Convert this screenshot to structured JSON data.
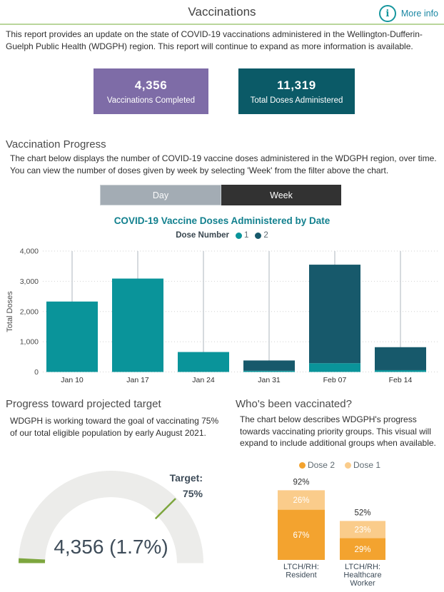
{
  "header": {
    "title": "Vaccinations",
    "more_info": "More info",
    "info_icon_glyph": "i"
  },
  "intro": "This report provides an update on the state of COVID-19 vaccinations administered in the Wellington-Dufferin-Guelph Public Health (WDGPH) region. This report will continue to expand as more information is available.",
  "kpi_cards": [
    {
      "value": "4,356",
      "label": "Vaccinations Completed",
      "color": "#7e6ca7"
    },
    {
      "value": "11,319",
      "label": "Total Doses Administered",
      "color": "#0b5a67"
    }
  ],
  "vaccination_progress": {
    "heading": "Vaccination Progress",
    "body": "The chart below displays the number of COVID-19 vaccine doses administered in the WDGPH region, over time. You can view the number of doses given by week by selecting 'Week' from the filter above the chart."
  },
  "toggle": {
    "day": "Day",
    "week": "Week",
    "selected": "Week"
  },
  "target_section": {
    "heading": "Progress toward projected target",
    "body": "WDGPH is working toward the goal of vaccinating 75% of our total eligible population by early August 2021."
  },
  "who_section": {
    "heading": "Who's been vaccinated?",
    "body": "The chart below describes WDGPH's progress towards vaccinating priority groups. This visual will expand to include additional groups when available."
  },
  "chart_data": [
    {
      "type": "bar",
      "stacked": true,
      "title": "COVID-19 Vaccine Doses Administered by Date",
      "legend": {
        "title": "Dose Number",
        "items": [
          {
            "label": "1",
            "color": "#0a949a"
          },
          {
            "label": "2",
            "color": "#17596b"
          }
        ]
      },
      "categories": [
        "Jan 10",
        "Jan 17",
        "Jan 24",
        "Jan 31",
        "Feb 07",
        "Feb 14"
      ],
      "series": [
        {
          "name": "1",
          "color": "#0a949a",
          "values": [
            2330,
            3090,
            660,
            40,
            290,
            60
          ]
        },
        {
          "name": "2",
          "color": "#17596b",
          "values": [
            0,
            0,
            0,
            340,
            3260,
            760
          ]
        }
      ],
      "xlabel": "",
      "ylabel": "Total Doses",
      "ylim": [
        0,
        4000
      ],
      "yticks": [
        "0",
        "1,000",
        "2,000",
        "3,000",
        "4,000"
      ],
      "grid": "dotted horizontal gridlines, gray vertical line at each category",
      "legend_position": "top"
    },
    {
      "type": "gauge",
      "value": 4356,
      "value_pct": 1.7,
      "value_label": "4,356 (1.7%)",
      "target_pct": 75,
      "target_label_lines": [
        "Target:",
        "75%"
      ],
      "track_color": "#ececea",
      "value_color": "#7da63e",
      "text_color": "#3e4c59"
    },
    {
      "type": "bar",
      "stacked": true,
      "percent": true,
      "legend": [
        {
          "label": "Dose 2",
          "color": "#f3a32f"
        },
        {
          "label": "Dose 1",
          "color": "#facc8b"
        }
      ],
      "groups": [
        {
          "label_lines": [
            "LTCH/RH:",
            "Resident"
          ],
          "total_pct": 92,
          "dose2_pct": 67,
          "dose1_pct": 26
        },
        {
          "label_lines": [
            "LTCH/RH:",
            "Healthcare",
            "Worker"
          ],
          "total_pct": 52,
          "dose2_pct": 29,
          "dose1_pct": 23
        }
      ],
      "legend_position": "top"
    }
  ]
}
